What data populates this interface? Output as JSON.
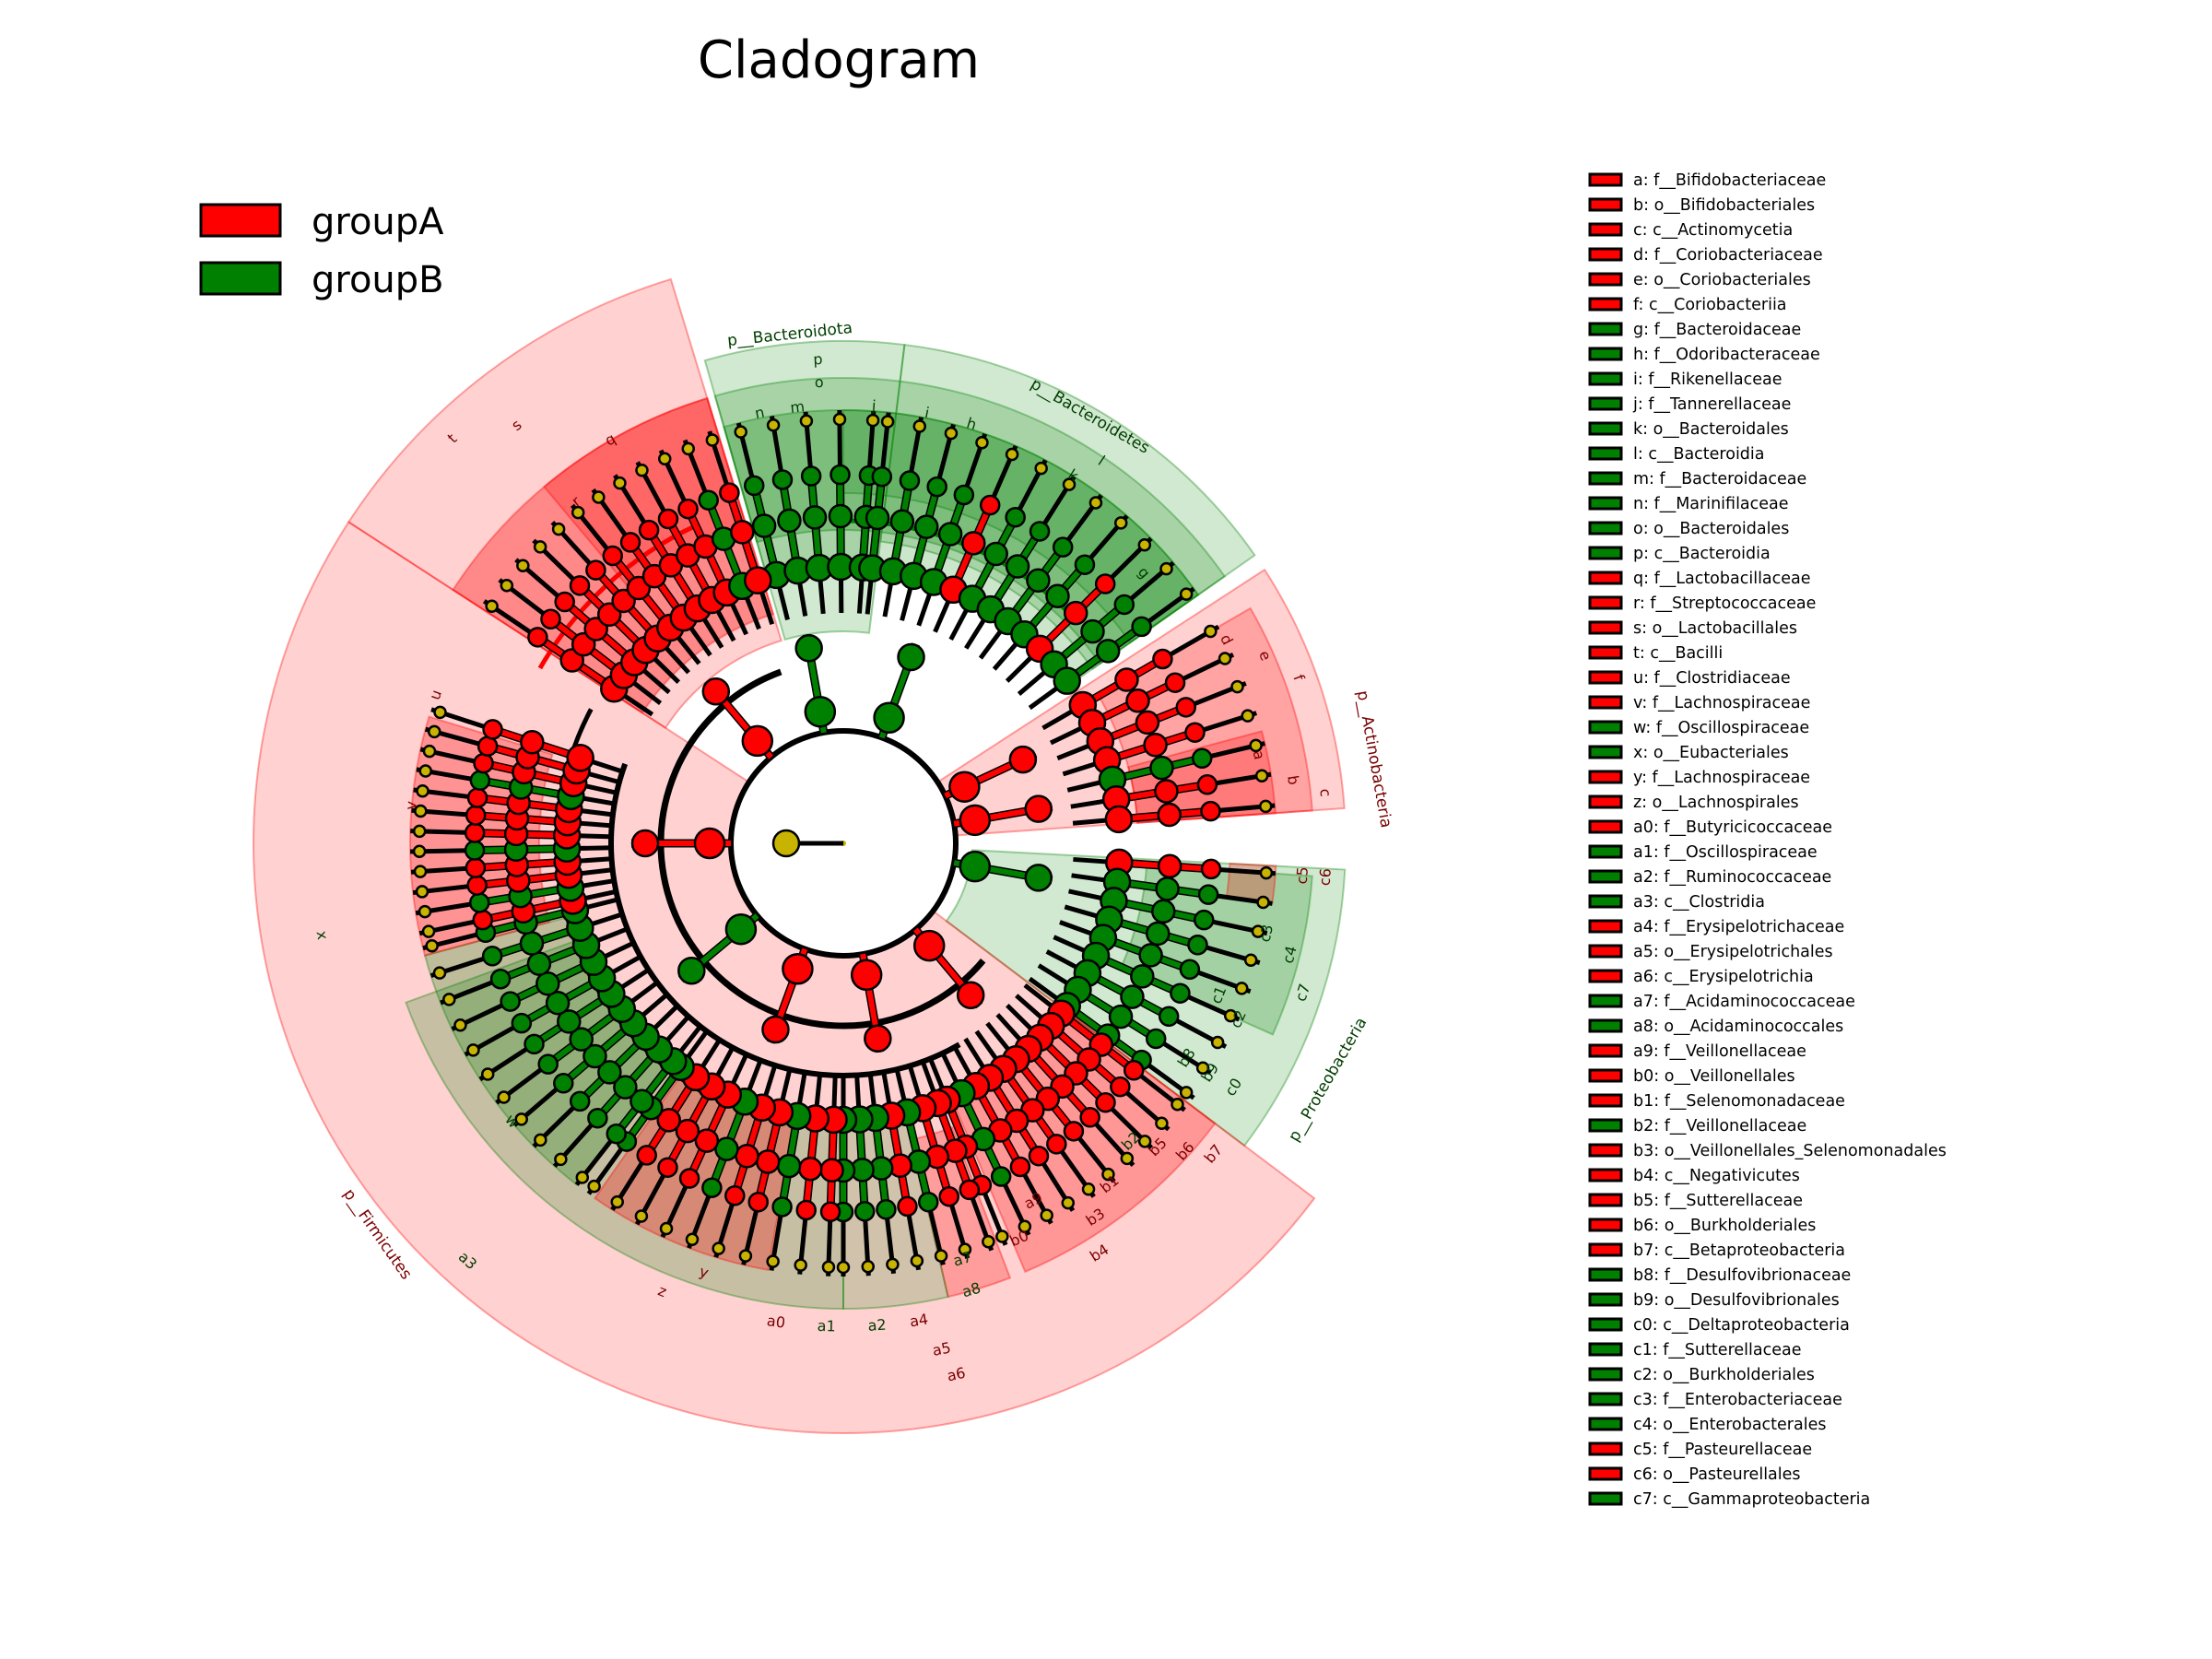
{
  "title": "Cladogram",
  "groups": [
    {
      "name": "groupA",
      "color": "#ff0000"
    },
    {
      "name": "groupB",
      "color": "#008000"
    }
  ],
  "neutral_node_color": "#c8b400",
  "legend_entries": [
    {
      "key": "a",
      "text": "a: f__Bifidobacteriaceae",
      "group": "A"
    },
    {
      "key": "b",
      "text": "b: o__Bifidobacteriales",
      "group": "A"
    },
    {
      "key": "c",
      "text": "c: c__Actinomycetia",
      "group": "A"
    },
    {
      "key": "d",
      "text": "d: f__Coriobacteriaceae",
      "group": "A"
    },
    {
      "key": "e",
      "text": "e: o__Coriobacteriales",
      "group": "A"
    },
    {
      "key": "f",
      "text": "f: c__Coriobacteriia",
      "group": "A"
    },
    {
      "key": "g",
      "text": "g: f__Bacteroidaceae",
      "group": "B"
    },
    {
      "key": "h",
      "text": "h: f__Odoribacteraceae",
      "group": "B"
    },
    {
      "key": "i",
      "text": "i: f__Rikenellaceae",
      "group": "B"
    },
    {
      "key": "j",
      "text": "j: f__Tannerellaceae",
      "group": "B"
    },
    {
      "key": "k",
      "text": "k: o__Bacteroidales",
      "group": "B"
    },
    {
      "key": "l",
      "text": "l: c__Bacteroidia",
      "group": "B"
    },
    {
      "key": "m",
      "text": "m: f__Bacteroidaceae",
      "group": "B"
    },
    {
      "key": "n",
      "text": "n: f__Marinifilaceae",
      "group": "B"
    },
    {
      "key": "o",
      "text": "o: o__Bacteroidales",
      "group": "B"
    },
    {
      "key": "p",
      "text": "p: c__Bacteroidia",
      "group": "B"
    },
    {
      "key": "q",
      "text": "q: f__Lactobacillaceae",
      "group": "A"
    },
    {
      "key": "r",
      "text": "r: f__Streptococcaceae",
      "group": "A"
    },
    {
      "key": "s",
      "text": "s: o__Lactobacillales",
      "group": "A"
    },
    {
      "key": "t",
      "text": "t: c__Bacilli",
      "group": "A"
    },
    {
      "key": "u",
      "text": "u: f__Clostridiaceae",
      "group": "A"
    },
    {
      "key": "v",
      "text": "v: f__Lachnospiraceae",
      "group": "A"
    },
    {
      "key": "w",
      "text": "w: f__Oscillospiraceae",
      "group": "B"
    },
    {
      "key": "x",
      "text": "x: o__Eubacteriales",
      "group": "B"
    },
    {
      "key": "y",
      "text": "y: f__Lachnospiraceae",
      "group": "A"
    },
    {
      "key": "z",
      "text": "z: o__Lachnospirales",
      "group": "A"
    },
    {
      "key": "a0",
      "text": "a0: f__Butyricicoccaceae",
      "group": "A"
    },
    {
      "key": "a1",
      "text": "a1: f__Oscillospiraceae",
      "group": "B"
    },
    {
      "key": "a2",
      "text": "a2: f__Ruminococcaceae",
      "group": "B"
    },
    {
      "key": "a3",
      "text": "a3: c__Clostridia",
      "group": "B"
    },
    {
      "key": "a4",
      "text": "a4: f__Erysipelotrichaceae",
      "group": "A"
    },
    {
      "key": "a5",
      "text": "a5: o__Erysipelotrichales",
      "group": "A"
    },
    {
      "key": "a6",
      "text": "a6: c__Erysipelotrichia",
      "group": "A"
    },
    {
      "key": "a7",
      "text": "a7: f__Acidaminococcaceae",
      "group": "B"
    },
    {
      "key": "a8",
      "text": "a8: o__Acidaminococcales",
      "group": "B"
    },
    {
      "key": "a9",
      "text": "a9: f__Veillonellaceae",
      "group": "A"
    },
    {
      "key": "b0",
      "text": "b0: o__Veillonellales",
      "group": "A"
    },
    {
      "key": "b1",
      "text": "b1: f__Selenomonadaceae",
      "group": "A"
    },
    {
      "key": "b2",
      "text": "b2: f__Veillonellaceae",
      "group": "B"
    },
    {
      "key": "b3",
      "text": "b3: o__Veillonellales_Selenomonadales",
      "group": "A"
    },
    {
      "key": "b4",
      "text": "b4: c__Negativicutes",
      "group": "A"
    },
    {
      "key": "b5",
      "text": "b5: f__Sutterellaceae",
      "group": "A"
    },
    {
      "key": "b6",
      "text": "b6: o__Burkholderiales",
      "group": "A"
    },
    {
      "key": "b7",
      "text": "b7: c__Betaproteobacteria",
      "group": "A"
    },
    {
      "key": "b8",
      "text": "b8: f__Desulfovibrionaceae",
      "group": "B"
    },
    {
      "key": "b9",
      "text": "b9: o__Desulfovibrionales",
      "group": "B"
    },
    {
      "key": "c0",
      "text": "c0: c__Deltaproteobacteria",
      "group": "B"
    },
    {
      "key": "c1",
      "text": "c1: f__Sutterellaceae",
      "group": "B"
    },
    {
      "key": "c2",
      "text": "c2: o__Burkholderiales",
      "group": "B"
    },
    {
      "key": "c3",
      "text": "c3: f__Enterobacteriaceae",
      "group": "B"
    },
    {
      "key": "c4",
      "text": "c4: o__Enterobacterales",
      "group": "B"
    },
    {
      "key": "c5",
      "text": "c5: f__Pasteurellaceae",
      "group": "A"
    },
    {
      "key": "c6",
      "text": "c6: o__Pasteurellales",
      "group": "A"
    },
    {
      "key": "c7",
      "text": "c7: c__Gammaproteobacteria",
      "group": "B"
    }
  ],
  "phyla": [
    {
      "label": "p__Bacteroidota",
      "group": "B"
    },
    {
      "label": "p__Bacteroidetes",
      "group": "B"
    },
    {
      "label": "p__Actinobacteria",
      "group": "A"
    },
    {
      "label": "p__Proteobacteria",
      "group": "B"
    },
    {
      "label": "p__Firmicutes",
      "group": "A"
    }
  ],
  "clade_labels": [
    {
      "key": "p",
      "group": "B"
    },
    {
      "key": "o",
      "group": "B"
    },
    {
      "key": "n",
      "group": "B"
    },
    {
      "key": "m",
      "group": "B"
    },
    {
      "key": "j",
      "group": "B"
    },
    {
      "key": "i",
      "group": "B"
    },
    {
      "key": "h",
      "group": "B"
    },
    {
      "key": "l",
      "group": "B"
    },
    {
      "key": "k",
      "group": "B"
    },
    {
      "key": "g",
      "group": "B"
    },
    {
      "key": "f",
      "group": "A"
    },
    {
      "key": "e",
      "group": "A"
    },
    {
      "key": "d",
      "group": "A"
    },
    {
      "key": "c",
      "group": "A"
    },
    {
      "key": "b",
      "group": "A"
    },
    {
      "key": "a",
      "group": "A"
    },
    {
      "key": "c6",
      "group": "A"
    },
    {
      "key": "c5",
      "group": "A"
    },
    {
      "key": "c7",
      "group": "B"
    },
    {
      "key": "c4",
      "group": "B"
    },
    {
      "key": "c3",
      "group": "B"
    },
    {
      "key": "c2",
      "group": "B"
    },
    {
      "key": "c1",
      "group": "B"
    },
    {
      "key": "c0",
      "group": "B"
    },
    {
      "key": "b9",
      "group": "B"
    },
    {
      "key": "b8",
      "group": "B"
    },
    {
      "key": "b7",
      "group": "A"
    },
    {
      "key": "b6",
      "group": "A"
    },
    {
      "key": "b5",
      "group": "A"
    },
    {
      "key": "b2",
      "group": "B"
    },
    {
      "key": "b1",
      "group": "A"
    },
    {
      "key": "b3",
      "group": "A"
    },
    {
      "key": "b4",
      "group": "A"
    },
    {
      "key": "a9",
      "group": "A"
    },
    {
      "key": "b0",
      "group": "A"
    },
    {
      "key": "a8",
      "group": "B"
    },
    {
      "key": "a7",
      "group": "B"
    },
    {
      "key": "a6",
      "group": "A"
    },
    {
      "key": "a5",
      "group": "A"
    },
    {
      "key": "a4",
      "group": "A"
    },
    {
      "key": "a2",
      "group": "B"
    },
    {
      "key": "a1",
      "group": "B"
    },
    {
      "key": "a0",
      "group": "A"
    },
    {
      "key": "z",
      "group": "A"
    },
    {
      "key": "y",
      "group": "A"
    },
    {
      "key": "a3",
      "group": "B"
    },
    {
      "key": "w",
      "group": "B"
    },
    {
      "key": "x",
      "group": "B"
    },
    {
      "key": "v",
      "group": "A"
    },
    {
      "key": "u",
      "group": "A"
    },
    {
      "key": "t",
      "group": "A"
    },
    {
      "key": "s",
      "group": "A"
    },
    {
      "key": "r",
      "group": "A"
    },
    {
      "key": "q",
      "group": "A"
    }
  ]
}
